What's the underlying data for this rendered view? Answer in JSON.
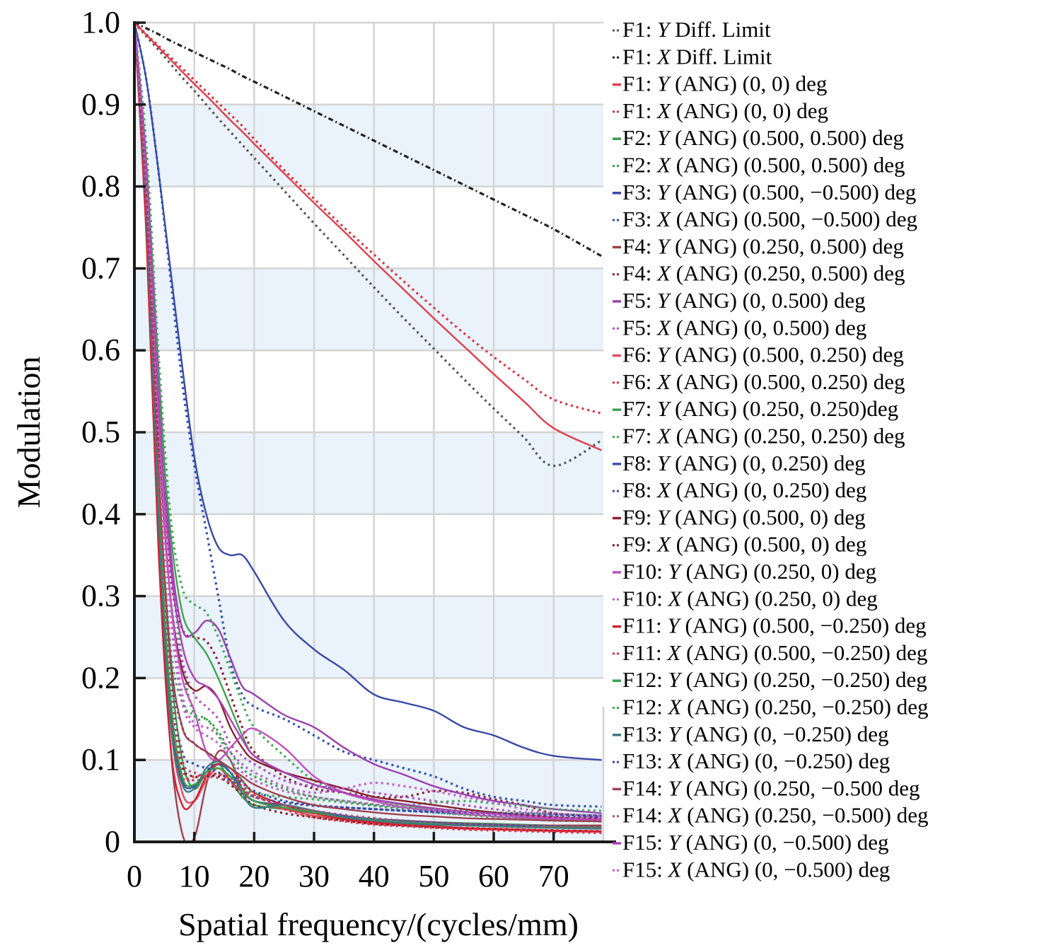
{
  "chart_data": {
    "type": "line",
    "title": "",
    "xlabel": "Spatial frequency/(cycles/mm)",
    "ylabel": "Modulation",
    "xlim": [
      0,
      78.3
    ],
    "ylim": [
      0,
      1.0
    ],
    "xticks": [
      0,
      10,
      20,
      30,
      40,
      50,
      60,
      70
    ],
    "xtick_labels": [
      "0",
      "10",
      "20",
      "30",
      "40",
      "50",
      "60",
      "70"
    ],
    "yticks": [
      0,
      0.1,
      0.2,
      0.3,
      0.4,
      0.5,
      0.6,
      0.7,
      0.8,
      0.9,
      1.0
    ],
    "ytick_labels": [
      "0",
      "0.1",
      "0.2",
      "0.3",
      "0.4",
      "0.5",
      "0.6",
      "0.7",
      "0.8",
      "0.9",
      "1.0"
    ],
    "grid": true,
    "background_bands": "alternating light blue every 0.1",
    "legend_position": "right",
    "x": [
      0,
      2,
      4,
      6,
      8,
      10,
      12,
      14,
      16,
      18,
      20,
      25,
      30,
      35,
      40,
      45,
      50,
      55,
      60,
      65,
      70,
      78
    ],
    "series": [
      {
        "name": "F1: Y Diff. Limit",
        "field": "F1",
        "axis": "Y",
        "coords": "Diff. Limit",
        "color": "#555555",
        "style": "dotted",
        "values": [
          1.0,
          0.983,
          0.967,
          0.95,
          0.933,
          0.917,
          0.9,
          0.883,
          0.867,
          0.851,
          0.835,
          0.795,
          0.755,
          0.716,
          0.677,
          0.639,
          0.602,
          0.565,
          0.529,
          0.494,
          0.459,
          0.49
        ]
      },
      {
        "name": "F1: X Diff. Limit",
        "field": "F1",
        "axis": "X",
        "coords": "Diff. Limit",
        "color": "#222222",
        "style": "dashdot",
        "values": [
          1.0,
          0.993,
          0.986,
          0.978,
          0.971,
          0.964,
          0.957,
          0.95,
          0.943,
          0.935,
          0.928,
          0.91,
          0.892,
          0.874,
          0.856,
          0.838,
          0.82,
          0.802,
          0.784,
          0.766,
          0.748,
          0.715
        ]
      },
      {
        "name": "F1: Y (ANG) (0, 0) deg",
        "field": "F1",
        "axis": "Y",
        "coords": "(0, 0)",
        "color": "#e0404e",
        "style": "solid",
        "values": [
          1.0,
          0.985,
          0.97,
          0.955,
          0.94,
          0.925,
          0.911,
          0.896,
          0.881,
          0.867,
          0.852,
          0.816,
          0.78,
          0.745,
          0.709,
          0.674,
          0.639,
          0.605,
          0.571,
          0.538,
          0.505,
          0.478
        ]
      },
      {
        "name": "F1: X (ANG) (0, 0) deg",
        "field": "F1",
        "axis": "X",
        "coords": "(0, 0)",
        "color": "#e0303e",
        "style": "dotted",
        "values": [
          1.0,
          0.986,
          0.972,
          0.958,
          0.944,
          0.93,
          0.916,
          0.902,
          0.888,
          0.874,
          0.858,
          0.82,
          0.785,
          0.75,
          0.717,
          0.684,
          0.652,
          0.621,
          0.592,
          0.565,
          0.54,
          0.523
        ]
      },
      {
        "name": "F2: Y (ANG) (0.500, 0.500) deg",
        "field": "F2",
        "axis": "Y",
        "coords": "(0.500, 0.500)",
        "color": "#3a9a4a",
        "style": "solid",
        "values": [
          1.0,
          0.8,
          0.45,
          0.22,
          0.1,
          0.065,
          0.085,
          0.095,
          0.075,
          0.055,
          0.045,
          0.04,
          0.035,
          0.03,
          0.027,
          0.025,
          0.024,
          0.023,
          0.022,
          0.021,
          0.02,
          0.02
        ]
      },
      {
        "name": "F2: X (ANG) (0.500, 0.500) deg",
        "field": "F2",
        "axis": "X",
        "coords": "(0.500, 0.500)",
        "color": "#3aa04a",
        "style": "dotted",
        "values": [
          1.0,
          0.82,
          0.55,
          0.35,
          0.22,
          0.155,
          0.15,
          0.135,
          0.11,
          0.09,
          0.08,
          0.065,
          0.055,
          0.05,
          0.045,
          0.042,
          0.04,
          0.038,
          0.036,
          0.035,
          0.034,
          0.032
        ]
      },
      {
        "name": "F3: Y (ANG) (0.500, -0.500) deg",
        "field": "F3",
        "axis": "Y",
        "coords": "(0.500, −0.500)",
        "color": "#3848a8",
        "style": "solid",
        "values": [
          1.0,
          0.93,
          0.82,
          0.7,
          0.58,
          0.47,
          0.4,
          0.36,
          0.35,
          0.35,
          0.33,
          0.27,
          0.235,
          0.21,
          0.18,
          0.17,
          0.16,
          0.14,
          0.13,
          0.115,
          0.105,
          0.1
        ]
      },
      {
        "name": "F3: X (ANG) (0.500, -0.500) deg",
        "field": "F3",
        "axis": "X",
        "coords": "(0.500, −0.500)",
        "color": "#3050b0",
        "style": "dotted",
        "values": [
          1.0,
          0.93,
          0.82,
          0.69,
          0.56,
          0.46,
          0.38,
          0.3,
          0.22,
          0.18,
          0.165,
          0.15,
          0.13,
          0.11,
          0.1,
          0.09,
          0.08,
          0.065,
          0.055,
          0.05,
          0.045,
          0.043
        ]
      },
      {
        "name": "F4: Y (ANG) (0.250, 0.500) deg",
        "field": "F4",
        "axis": "Y",
        "coords": "(0.250, 0.500)",
        "color": "#a0404a",
        "style": "solid",
        "values": [
          1.0,
          0.75,
          0.38,
          0.12,
          0.01,
          0.005,
          0.07,
          0.11,
          0.1,
          0.065,
          0.05,
          0.042,
          0.035,
          0.03,
          0.027,
          0.025,
          0.023,
          0.022,
          0.021,
          0.02,
          0.02,
          0.02
        ]
      },
      {
        "name": "F4: X (ANG) (0.250, 0.500) deg",
        "field": "F4",
        "axis": "X",
        "coords": "(0.250, 0.500)",
        "color": "#8a2030",
        "style": "dotted",
        "values": [
          1.0,
          0.82,
          0.55,
          0.33,
          0.26,
          0.25,
          0.245,
          0.22,
          0.18,
          0.14,
          0.11,
          0.08,
          0.065,
          0.06,
          0.055,
          0.055,
          0.062,
          0.06,
          0.052,
          0.045,
          0.035,
          0.03
        ]
      },
      {
        "name": "F5: Y (ANG) (0, 0.500) deg",
        "field": "F5",
        "axis": "Y",
        "coords": "(0, 0.500)",
        "color": "#9a40b0",
        "style": "solid",
        "values": [
          1.0,
          0.83,
          0.58,
          0.36,
          0.26,
          0.255,
          0.27,
          0.26,
          0.225,
          0.19,
          0.18,
          0.155,
          0.14,
          0.115,
          0.095,
          0.082,
          0.068,
          0.058,
          0.05,
          0.045,
          0.04,
          0.035
        ]
      },
      {
        "name": "F5: X (ANG) (0, 0.500) deg",
        "field": "F5",
        "axis": "X",
        "coords": "(0, 0.500)",
        "color": "#b050c0",
        "style": "dotted",
        "values": [
          1.0,
          0.8,
          0.5,
          0.3,
          0.22,
          0.18,
          0.165,
          0.15,
          0.12,
          0.105,
          0.095,
          0.075,
          0.068,
          0.065,
          0.06,
          0.055,
          0.05,
          0.045,
          0.04,
          0.036,
          0.034,
          0.032
        ]
      },
      {
        "name": "F6: Y (ANG) (0.500, 0.250) deg",
        "field": "F6",
        "axis": "Y",
        "coords": "(0.500, 0.250)",
        "color": "#e05060",
        "style": "solid",
        "values": [
          1.0,
          0.76,
          0.4,
          0.15,
          0.06,
          0.05,
          0.075,
          0.09,
          0.075,
          0.06,
          0.05,
          0.04,
          0.032,
          0.027,
          0.022,
          0.02,
          0.018,
          0.016,
          0.015,
          0.014,
          0.013,
          0.012
        ]
      },
      {
        "name": "F6: X (ANG) (0.500, 0.250) deg",
        "field": "F6",
        "axis": "X",
        "coords": "(0.500, 0.250)",
        "color": "#d83040",
        "style": "dotted",
        "values": [
          1.0,
          0.77,
          0.42,
          0.18,
          0.09,
          0.075,
          0.08,
          0.082,
          0.075,
          0.065,
          0.055,
          0.045,
          0.035,
          0.028,
          0.023,
          0.02,
          0.018,
          0.016,
          0.015,
          0.014,
          0.013,
          0.012
        ]
      },
      {
        "name": "F7: Y (ANG) (0.250, 0.250)deg",
        "field": "F7",
        "axis": "Y",
        "coords": "(0.250, 0.250)",
        "color": "#40a050",
        "style": "solid",
        "values": [
          1.0,
          0.83,
          0.56,
          0.38,
          0.28,
          0.25,
          0.23,
          0.2,
          0.165,
          0.13,
          0.105,
          0.085,
          0.07,
          0.06,
          0.052,
          0.045,
          0.04,
          0.037,
          0.034,
          0.032,
          0.03,
          0.028
        ]
      },
      {
        "name": "F7: X (ANG) (0.250, 0.250) deg",
        "field": "F7",
        "axis": "X",
        "coords": "(0.250, 0.250)",
        "color": "#48a858",
        "style": "dotted",
        "values": [
          1.0,
          0.85,
          0.6,
          0.4,
          0.31,
          0.29,
          0.28,
          0.25,
          0.21,
          0.17,
          0.14,
          0.105,
          0.075,
          0.06,
          0.05,
          0.045,
          0.048,
          0.05,
          0.047,
          0.044,
          0.04,
          0.038
        ]
      },
      {
        "name": "F8: Y (ANG) (0, 0.250) deg",
        "field": "F8",
        "axis": "Y",
        "coords": "(0, 0.250)",
        "color": "#4050a8",
        "style": "solid",
        "values": [
          1.0,
          0.76,
          0.4,
          0.16,
          0.075,
          0.068,
          0.085,
          0.095,
          0.085,
          0.065,
          0.05,
          0.045,
          0.038,
          0.032,
          0.028,
          0.026,
          0.024,
          0.022,
          0.021,
          0.02,
          0.019,
          0.018
        ]
      },
      {
        "name": "F8: X (ANG) (0, 0.250) deg",
        "field": "F8",
        "axis": "X",
        "coords": "(0, 0.250)",
        "color": "#3848b0",
        "style": "dotted",
        "values": [
          1.0,
          0.78,
          0.45,
          0.22,
          0.14,
          0.12,
          0.11,
          0.1,
          0.085,
          0.072,
          0.062,
          0.05,
          0.045,
          0.042,
          0.04,
          0.038,
          0.036,
          0.034,
          0.033,
          0.032,
          0.031,
          0.03
        ]
      },
      {
        "name": "F9: Y (ANG) (0.500, 0) deg",
        "field": "F9",
        "axis": "Y",
        "coords": "(0.500, 0)",
        "color": "#8a2030",
        "style": "solid",
        "values": [
          1.0,
          0.8,
          0.5,
          0.3,
          0.21,
          0.185,
          0.19,
          0.175,
          0.14,
          0.115,
          0.1,
          0.085,
          0.075,
          0.065,
          0.055,
          0.05,
          0.045,
          0.04,
          0.036,
          0.033,
          0.03,
          0.028
        ]
      },
      {
        "name": "F9: X (ANG) (0.500, 0) deg",
        "field": "F9",
        "axis": "X",
        "coords": "(0.500, 0)",
        "color": "#7a2028",
        "style": "dotted",
        "values": [
          1.0,
          0.77,
          0.43,
          0.2,
          0.095,
          0.08,
          0.08,
          0.08,
          0.07,
          0.058,
          0.045,
          0.035,
          0.03,
          0.026,
          0.022,
          0.02,
          0.018,
          0.017,
          0.016,
          0.015,
          0.014,
          0.013
        ]
      },
      {
        "name": "F10: Y (ANG) (0.250, 0) deg",
        "field": "F10",
        "axis": "Y",
        "coords": "(0.250, 0)",
        "color": "#c050c0",
        "style": "solid",
        "values": [
          1.0,
          0.82,
          0.52,
          0.3,
          0.2,
          0.16,
          0.11,
          0.1,
          0.115,
          0.13,
          0.138,
          0.115,
          0.08,
          0.06,
          0.05,
          0.042,
          0.038,
          0.034,
          0.031,
          0.029,
          0.027,
          0.025
        ]
      },
      {
        "name": "F10: X (ANG) (0.250, 0) deg",
        "field": "F10",
        "axis": "X",
        "coords": "(0.250, 0)",
        "color": "#c060c8",
        "style": "dotted",
        "values": [
          1.0,
          0.8,
          0.5,
          0.3,
          0.18,
          0.145,
          0.14,
          0.13,
          0.11,
          0.095,
          0.085,
          0.068,
          0.06,
          0.065,
          0.072,
          0.068,
          0.062,
          0.055,
          0.048,
          0.04,
          0.035,
          0.03
        ]
      },
      {
        "name": "F11: Y (ANG) (0.500, -0.250) deg",
        "field": "F11",
        "axis": "Y",
        "coords": "(0.500, −0.250)",
        "color": "#d02030",
        "style": "solid",
        "values": [
          1.0,
          0.74,
          0.36,
          0.12,
          0.045,
          0.05,
          0.08,
          0.095,
          0.09,
          0.075,
          0.06,
          0.045,
          0.035,
          0.028,
          0.024,
          0.021,
          0.019,
          0.017,
          0.016,
          0.015,
          0.014,
          0.013
        ]
      },
      {
        "name": "F11: X (ANG) (0.500, -0.250) deg",
        "field": "F11",
        "axis": "X",
        "coords": "(0.500, −0.250)",
        "color": "#e03040",
        "style": "dotted",
        "values": [
          1.0,
          0.76,
          0.4,
          0.16,
          0.08,
          0.08,
          0.082,
          0.083,
          0.078,
          0.068,
          0.058,
          0.04,
          0.03,
          0.025,
          0.021,
          0.019,
          0.017,
          0.015,
          0.014,
          0.013,
          0.012,
          0.011
        ]
      },
      {
        "name": "F12: Y (ANG) (0.250, -0.250) deg",
        "field": "F12",
        "axis": "Y",
        "coords": "(0.250, −0.250)",
        "color": "#3aa04a",
        "style": "solid",
        "values": [
          1.0,
          0.78,
          0.42,
          0.18,
          0.08,
          0.07,
          0.085,
          0.09,
          0.08,
          0.065,
          0.05,
          0.042,
          0.036,
          0.03,
          0.027,
          0.024,
          0.022,
          0.02,
          0.019,
          0.018,
          0.018,
          0.017
        ]
      },
      {
        "name": "F12: X (ANG) (0.250, -0.250) deg",
        "field": "F12",
        "axis": "X",
        "coords": "(0.250, −0.250)",
        "color": "#40a858",
        "style": "dotted",
        "values": [
          1.0,
          0.79,
          0.46,
          0.24,
          0.17,
          0.155,
          0.15,
          0.13,
          0.1,
          0.075,
          0.06,
          0.055,
          0.052,
          0.048,
          0.044,
          0.04,
          0.036,
          0.033,
          0.03,
          0.028,
          0.026,
          0.025
        ]
      },
      {
        "name": "F13: Y (ANG) (0, -0.250) deg",
        "field": "F13",
        "axis": "Y",
        "coords": "(0, −0.250)",
        "color": "#3a7a80",
        "style": "solid",
        "values": [
          1.0,
          0.77,
          0.4,
          0.15,
          0.07,
          0.065,
          0.09,
          0.098,
          0.085,
          0.06,
          0.042,
          0.045,
          0.038,
          0.03,
          0.026,
          0.023,
          0.021,
          0.02,
          0.019,
          0.018,
          0.017,
          0.016
        ]
      },
      {
        "name": "F13: X (ANG) (0, -0.250) deg",
        "field": "F13",
        "axis": "X",
        "coords": "(0, −0.250)",
        "color": "#3848a8",
        "style": "dotted",
        "values": [
          1.0,
          0.78,
          0.44,
          0.2,
          0.11,
          0.095,
          0.09,
          0.085,
          0.075,
          0.065,
          0.055,
          0.048,
          0.044,
          0.042,
          0.04,
          0.038,
          0.037,
          0.036,
          0.035,
          0.034,
          0.033,
          0.032
        ]
      },
      {
        "name": "F14: Y (ANG) (0.250, -0.500 deg",
        "field": "F14",
        "axis": "Y",
        "coords": "(0.250, −0.500",
        "color": "#a04050",
        "style": "solid",
        "values": [
          1.0,
          0.79,
          0.46,
          0.23,
          0.14,
          0.12,
          0.11,
          0.1,
          0.09,
          0.08,
          0.07,
          0.055,
          0.045,
          0.04,
          0.036,
          0.033,
          0.031,
          0.029,
          0.028,
          0.027,
          0.026,
          0.025
        ]
      },
      {
        "name": "F14: X (ANG) (0.250, -0.500) deg",
        "field": "F14",
        "axis": "X",
        "coords": "(0.250, −0.500)",
        "color": "#b05060",
        "style": "dotted",
        "values": [
          1.0,
          0.78,
          0.44,
          0.2,
          0.1,
          0.085,
          0.08,
          0.078,
          0.072,
          0.064,
          0.056,
          0.045,
          0.038,
          0.033,
          0.029,
          0.026,
          0.024,
          0.022,
          0.021,
          0.02,
          0.019,
          0.018
        ]
      },
      {
        "name": "F15: Y (ANG) (0, -0.500) deg",
        "field": "F15",
        "axis": "Y",
        "coords": "(0, −0.500)",
        "color": "#b040b8",
        "style": "solid",
        "values": [
          1.0,
          0.82,
          0.54,
          0.34,
          0.24,
          0.2,
          0.19,
          0.175,
          0.15,
          0.125,
          0.105,
          0.085,
          0.07,
          0.06,
          0.052,
          0.046,
          0.041,
          0.037,
          0.034,
          0.031,
          0.029,
          0.027
        ]
      },
      {
        "name": "F15: X (ANG) (0, -0.500) deg",
        "field": "F15",
        "axis": "X",
        "coords": "(0, −0.500)",
        "color": "#c060c8",
        "style": "dotted",
        "values": [
          1.0,
          0.8,
          0.5,
          0.28,
          0.17,
          0.14,
          0.13,
          0.12,
          0.1,
          0.085,
          0.075,
          0.062,
          0.055,
          0.05,
          0.046,
          0.042,
          0.039,
          0.036,
          0.034,
          0.032,
          0.03,
          0.028
        ]
      }
    ]
  }
}
